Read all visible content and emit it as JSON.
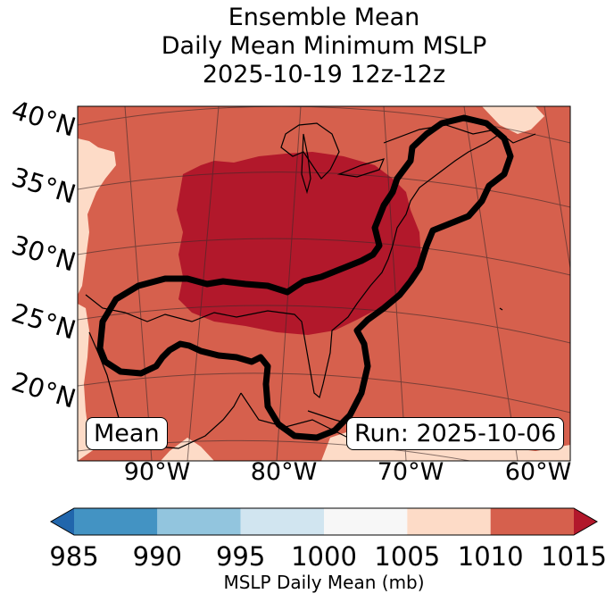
{
  "chart_data": {
    "type": "heatmap",
    "title_lines": [
      "Ensemble Mean",
      "Daily Mean Minimum MSLP",
      "2025-10-19 12z-12z"
    ],
    "map_region": "Eastern United States and western Atlantic",
    "latitude_labels": [
      "40°N",
      "35°N",
      "30°N",
      "25°N",
      "20°N"
    ],
    "longitude_labels": [
      "90°W",
      "80°W",
      "70°W",
      "60°W"
    ],
    "latitude_range": [
      17,
      42
    ],
    "longitude_range": [
      -95,
      -58
    ],
    "annotation_left": "Mean",
    "annotation_right": "Run: 2025-10-06",
    "field_bins": [
      {
        "range": "1005-1010",
        "color": "#fddbc7",
        "area": "western Gulf coast and far southwest edge"
      },
      {
        "range": "1010-1015",
        "color": "#d6604d",
        "area": "most of the map domain"
      },
      {
        "range": ">1015",
        "color": "#b2182b",
        "area": "central and eastern United States interior"
      }
    ],
    "contour_description": "Heavy black outline enclosing Gulf coast, Florida and the Atlantic seaboard",
    "colorbar": {
      "label": "MSLP Daily Mean (mb)",
      "ticks": [
        "985",
        "990",
        "995",
        "1000",
        "1005",
        "1010",
        "1015"
      ],
      "bin_colors": [
        "#4393c3",
        "#92c5de",
        "#d1e5f0",
        "#f7f7f7",
        "#fddbc7",
        "#d6604d"
      ],
      "under_color": "#2166ac",
      "over_color": "#b2182b",
      "extend": "both"
    }
  }
}
